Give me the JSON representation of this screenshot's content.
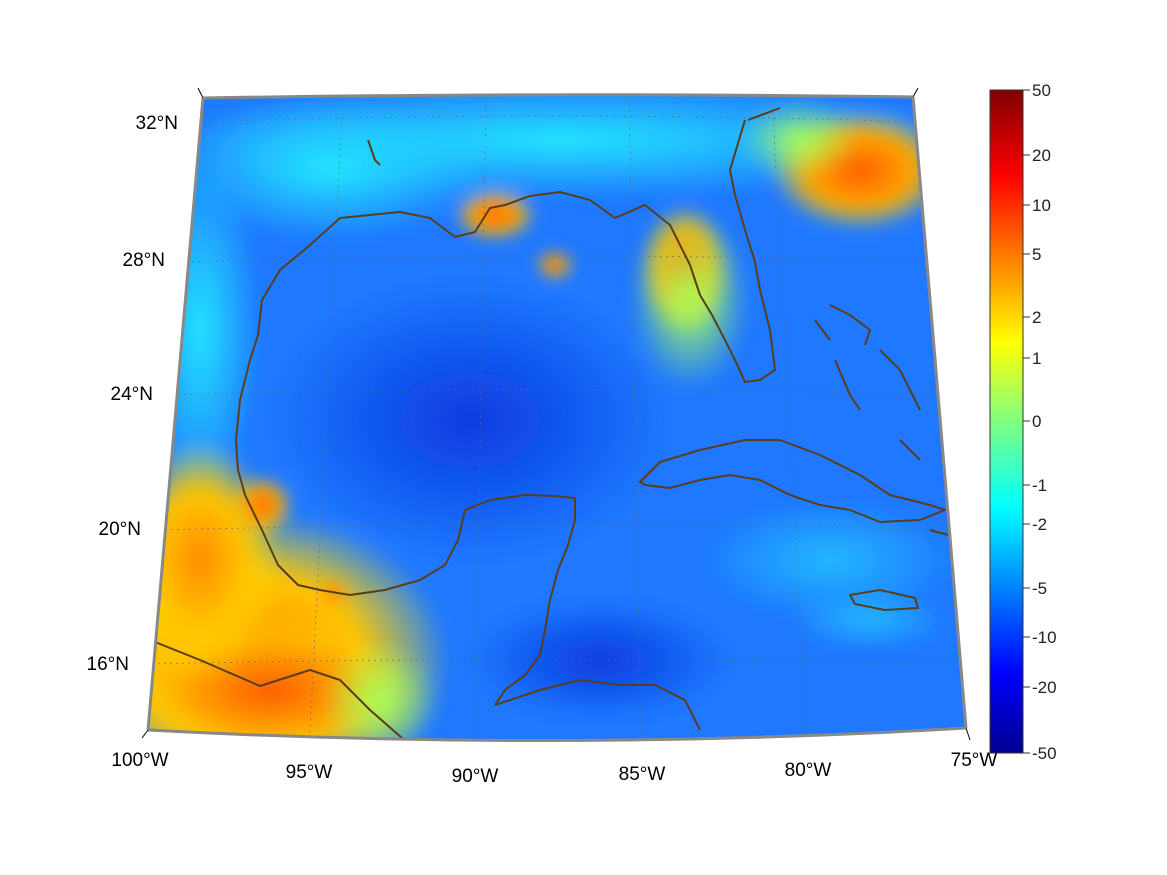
{
  "map": {
    "projection": "lambert-conformal",
    "extent": {
      "lon_min": -100,
      "lon_max": -75,
      "lat_min": 14,
      "lat_max": 33
    },
    "lon_ticks": [
      {
        "lon": -100,
        "label": "100°W"
      },
      {
        "lon": -95,
        "label": "95°W"
      },
      {
        "lon": -90,
        "label": "90°W"
      },
      {
        "lon": -85,
        "label": "85°W"
      },
      {
        "lon": -80,
        "label": "80°W"
      },
      {
        "lon": -75,
        "label": "75°W"
      }
    ],
    "lat_ticks": [
      {
        "lat": 32,
        "label": "32°N"
      },
      {
        "lat": 28,
        "label": "28°N"
      },
      {
        "lat": 24,
        "label": "24°N"
      },
      {
        "lat": 20,
        "label": "20°N"
      },
      {
        "lat": 16,
        "label": "16°N"
      }
    ],
    "coastline_color": "#5a3e1b",
    "colormap": "jet"
  },
  "colorbar": {
    "labels": [
      "50",
      "20",
      "10",
      "5",
      "2",
      "1",
      "0",
      "-1",
      "-2",
      "-5",
      "-10",
      "-20",
      "-50"
    ],
    "colormap": "jet"
  }
}
